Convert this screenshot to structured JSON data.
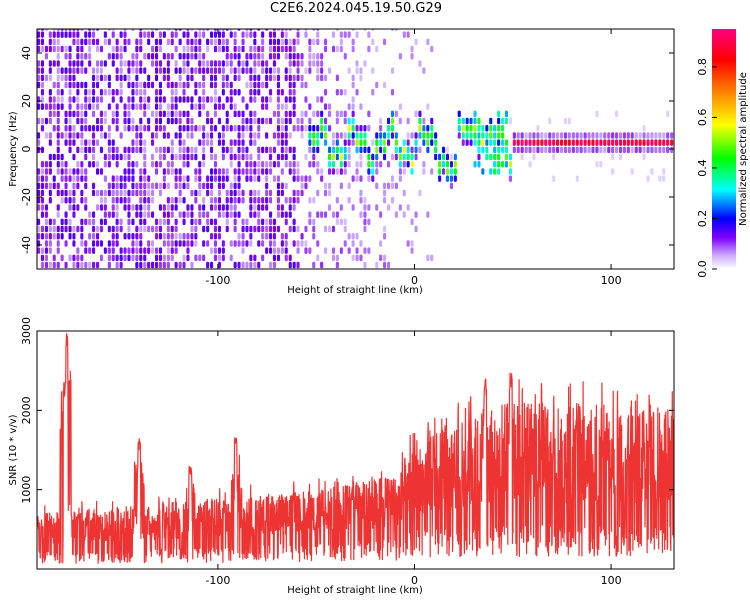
{
  "title": "C2E6.2024.045.19.50.G29",
  "chart_data": [
    {
      "type": "heatmap",
      "xlabel": "Height of straight line (km)",
      "ylabel": "Frequency (Hz)",
      "xlim": [
        -192,
        132
      ],
      "ylim": [
        -50,
        50
      ],
      "x_ticks": [
        -100,
        0,
        100
      ],
      "x_tick_labels": [
        "-100",
        "0",
        "100"
      ],
      "y_ticks": [
        -40,
        -20,
        0,
        20,
        40
      ],
      "y_tick_labels": [
        "-40",
        "-20",
        "0",
        "20",
        "40"
      ],
      "colorbar": {
        "label": "Normalized spectral amplitude",
        "range": [
          0,
          0.95
        ],
        "ticks": [
          0.0,
          0.2,
          0.4,
          0.6,
          0.8
        ],
        "tick_labels": [
          "0.0",
          "0.2",
          "0.4",
          "0.6",
          "0.8"
        ],
        "colormap": [
          "#ffffff",
          "#8000ff",
          "#0000ff",
          "#00ffff",
          "#00ff00",
          "#ffff00",
          "#ff8000",
          "#ff0000",
          "#ff0080"
        ]
      },
      "features": [
        {
          "region": "noise",
          "x_range": [
            -192,
            -60
          ],
          "intensity": 0.12
        },
        {
          "region": "fading noise",
          "x_range": [
            -60,
            10
          ],
          "intensity": 0.05
        },
        {
          "region": "turbulent band",
          "x_range": [
            -55,
            50
          ],
          "freq_center": 0,
          "intensity": 0.5
        },
        {
          "region": "stable carrier",
          "x_range": [
            50,
            132
          ],
          "freq_center": 0,
          "intensity": 0.9
        }
      ]
    },
    {
      "type": "line",
      "xlabel": "Height of straight line (km)",
      "ylabel": "SNR (10 * v/v)",
      "xlim": [
        -192,
        132
      ],
      "ylim": [
        0,
        3000
      ],
      "x_ticks": [
        -100,
        0,
        100
      ],
      "x_tick_labels": [
        "-100",
        "0",
        "100"
      ],
      "y_ticks": [
        1000,
        2000,
        3000
      ],
      "y_tick_labels": [
        "1000",
        "2000",
        "3000"
      ],
      "series_color": "#ee3333",
      "envelope": [
        {
          "x": -192,
          "low": 200,
          "high": 700
        },
        {
          "x": -100,
          "low": 250,
          "high": 900
        },
        {
          "x": -50,
          "low": 300,
          "high": 1000
        },
        {
          "x": -8,
          "low": 350,
          "high": 1200
        },
        {
          "x": -5,
          "low": 450,
          "high": 1500
        },
        {
          "x": 40,
          "low": 500,
          "high": 2100
        },
        {
          "x": 132,
          "low": 500,
          "high": 2100
        }
      ],
      "spikes": [
        {
          "x": -177,
          "value": 2980
        },
        {
          "x": -178,
          "value": 2400
        },
        {
          "x": -140,
          "value": 1650
        },
        {
          "x": -91,
          "value": 1750
        },
        {
          "x": -114,
          "value": 1300
        },
        {
          "x": 36,
          "value": 2420
        },
        {
          "x": 49,
          "value": 2480
        }
      ]
    }
  ]
}
